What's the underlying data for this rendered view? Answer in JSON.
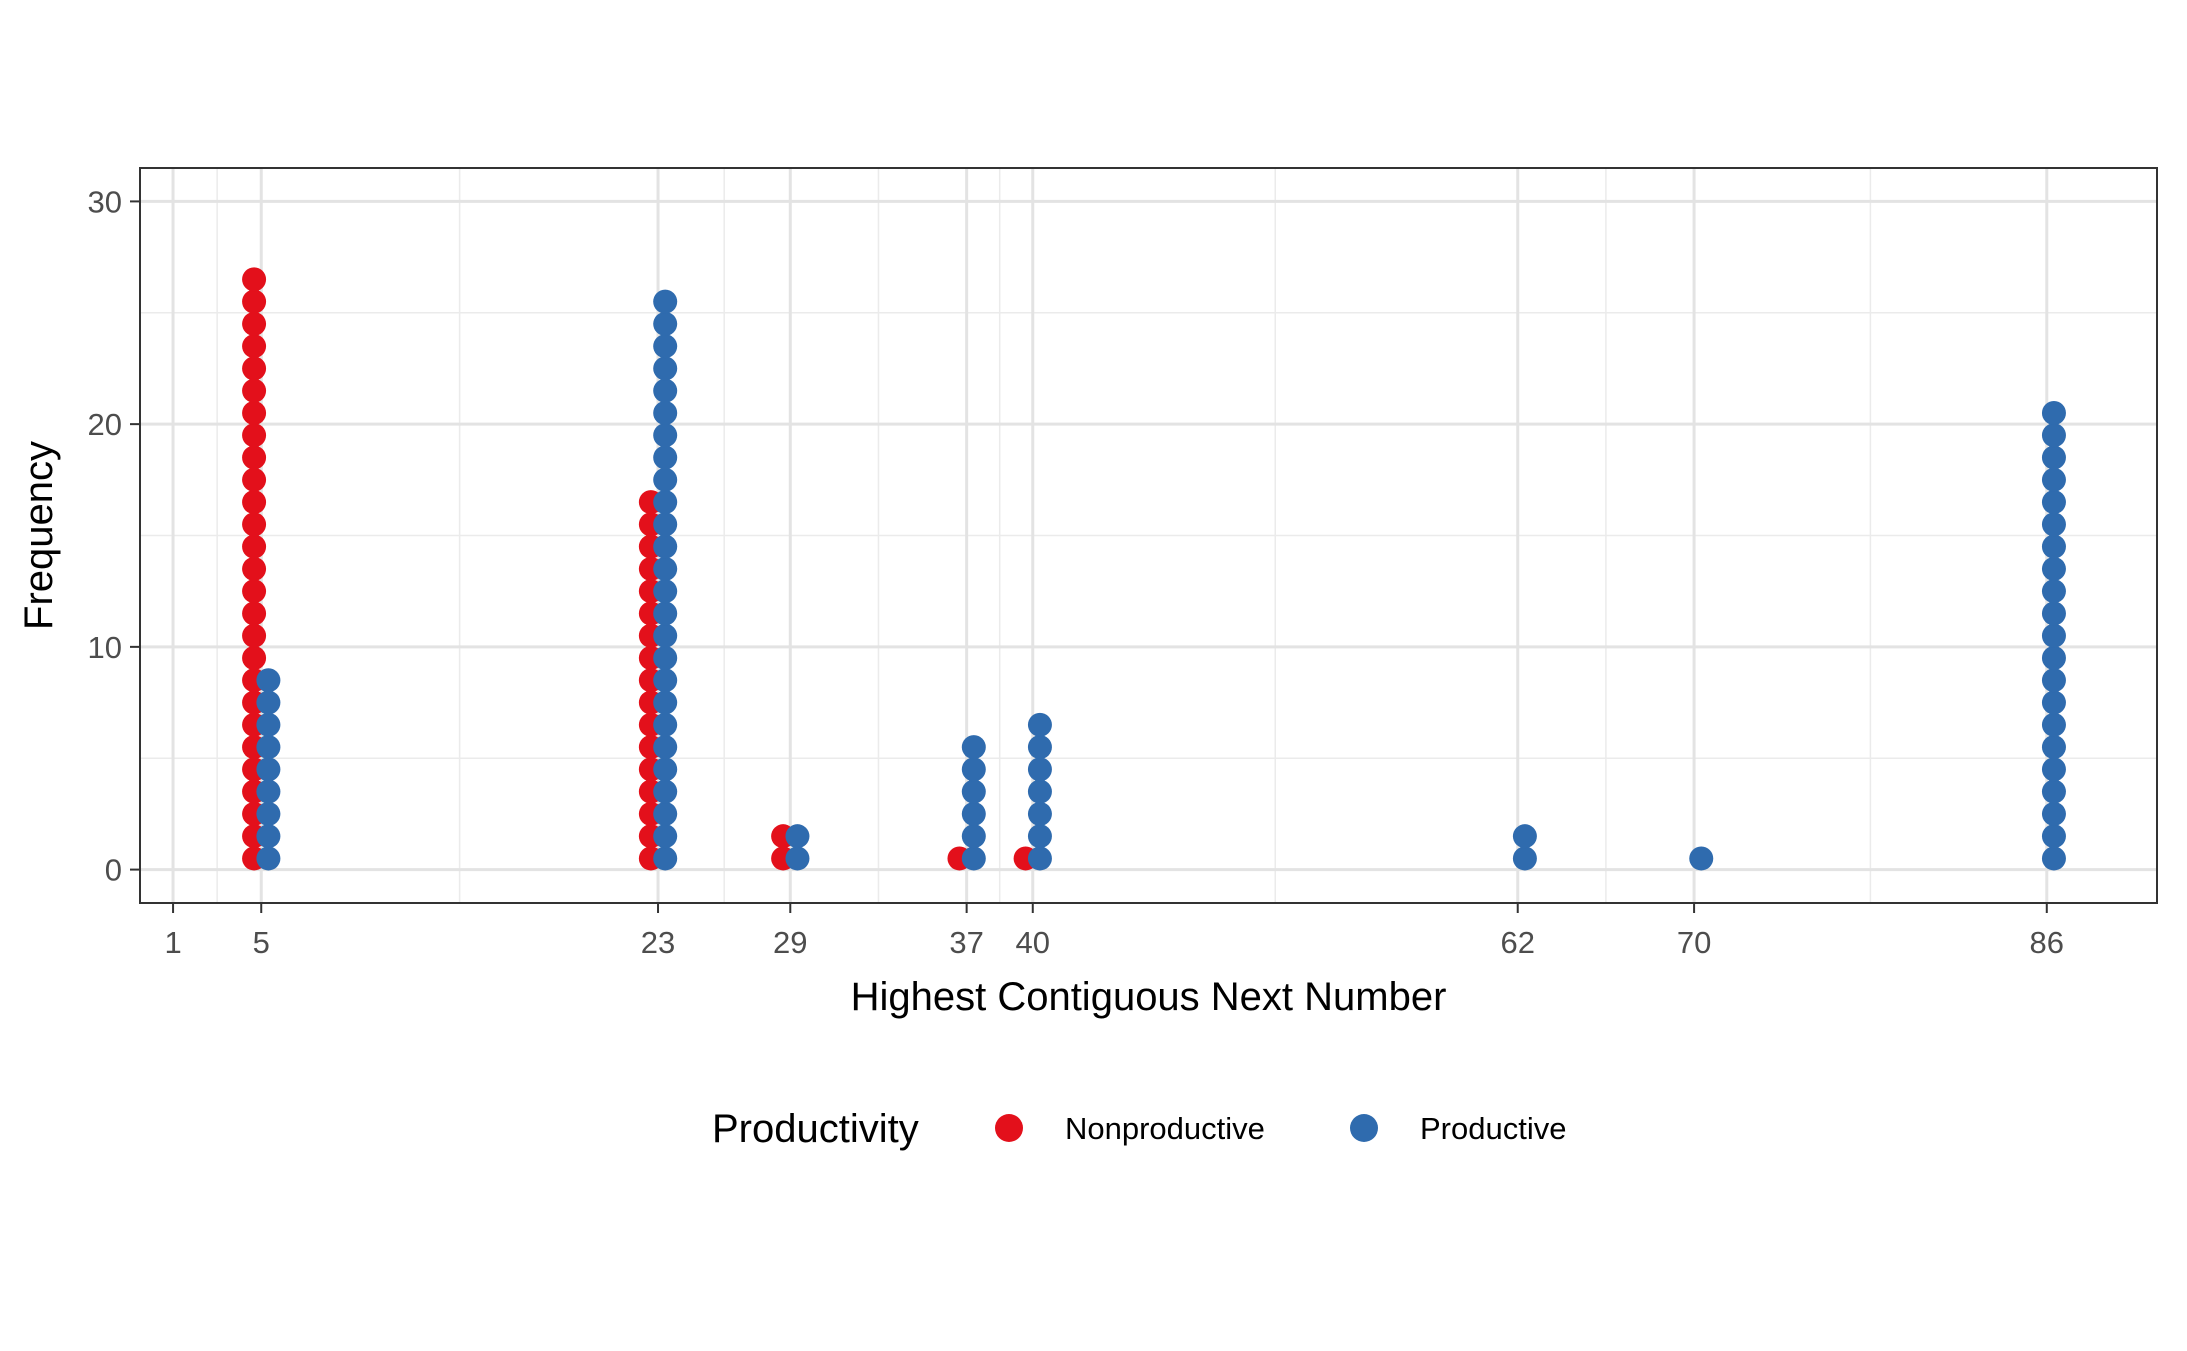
{
  "chart_data": {
    "type": "scatter",
    "subtype": "dot-plot",
    "xlabel": "Highest Contiguous Next Number",
    "ylabel": "Frequency",
    "xlim": [
      -0.5,
      91
    ],
    "ylim": [
      -1.5,
      31.5
    ],
    "x_ticks": [
      1,
      5,
      23,
      29,
      37,
      40,
      62,
      70,
      86
    ],
    "y_ticks": [
      0,
      10,
      20,
      30
    ],
    "grid": true,
    "legend": {
      "title": "Productivity",
      "position": "bottom"
    },
    "series": [
      {
        "name": "Nonproductive",
        "color": "#E3101B",
        "points": [
          {
            "x": 5,
            "count": 27
          },
          {
            "x": 23,
            "count": 17
          },
          {
            "x": 29,
            "count": 2
          },
          {
            "x": 37,
            "count": 1
          },
          {
            "x": 40,
            "count": 1
          }
        ]
      },
      {
        "name": "Productive",
        "color": "#2F6BAE",
        "points": [
          {
            "x": 5,
            "count": 9
          },
          {
            "x": 23,
            "count": 26
          },
          {
            "x": 29,
            "count": 2
          },
          {
            "x": 37,
            "count": 6
          },
          {
            "x": 40,
            "count": 7
          },
          {
            "x": 62,
            "count": 2
          },
          {
            "x": 70,
            "count": 1
          },
          {
            "x": 86,
            "count": 21
          }
        ]
      }
    ]
  }
}
